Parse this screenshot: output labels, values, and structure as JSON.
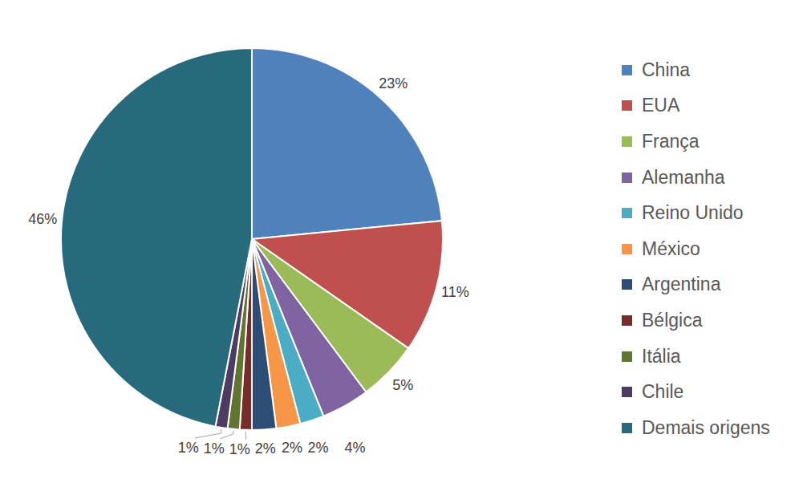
{
  "chart_data": {
    "type": "pie",
    "categories": [
      "China",
      "EUA",
      "França",
      "Alemanha",
      "Reino Unido",
      "México",
      "Argentina",
      "Bélgica",
      "Itália",
      "Chile",
      "Demais origens"
    ],
    "values": [
      23,
      11,
      5,
      4,
      2,
      2,
      2,
      1,
      1,
      1,
      46
    ],
    "value_labels": [
      "23%",
      "11%",
      "5%",
      "4%",
      "2%",
      "2%",
      "2%",
      "1%",
      "1%",
      "1%",
      "46%"
    ],
    "colors": [
      "#4f81bd",
      "#c0504d",
      "#9bbb59",
      "#8064a2",
      "#4bacc6",
      "#f79646",
      "#2c4d75",
      "#772c2a",
      "#5f7530",
      "#4d3b62",
      "#276a7c"
    ],
    "data_labels": true,
    "legend": "right"
  }
}
